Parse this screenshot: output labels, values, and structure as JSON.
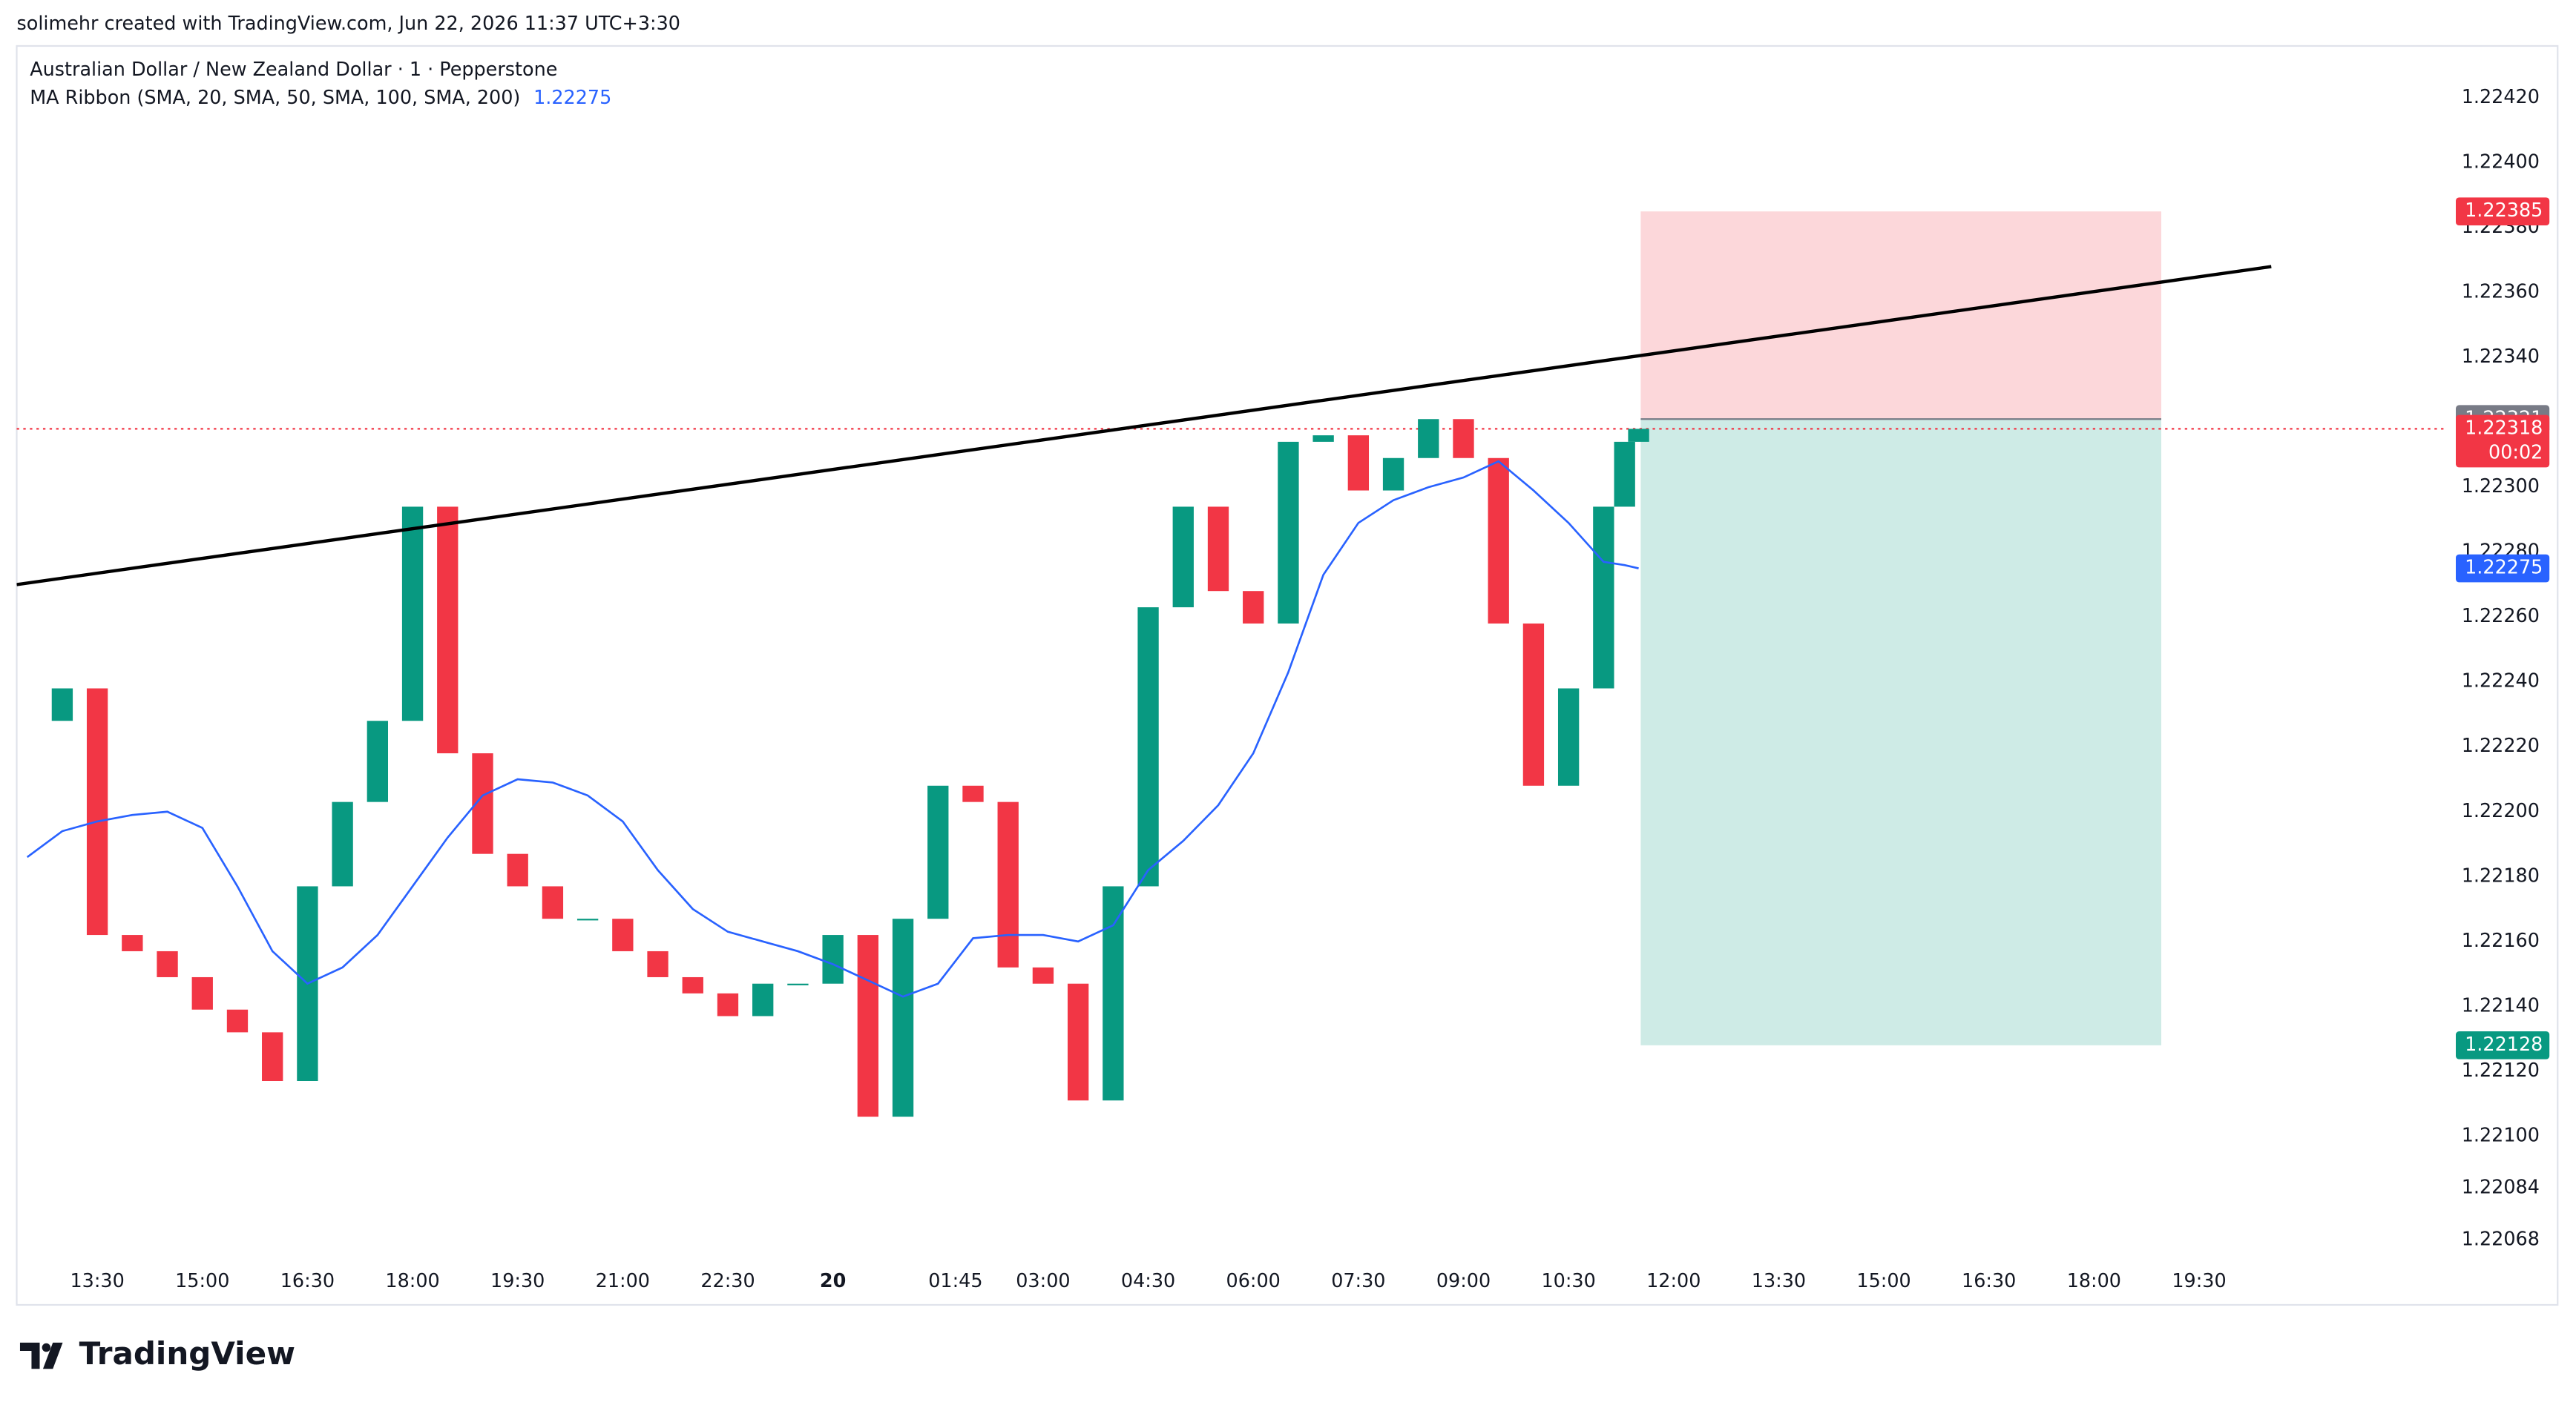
{
  "caption": "solimehr created with TradingView.com, Jun 22, 2026 11:37 UTC+3:30",
  "logo": "TradingView",
  "chart_data": {
    "type": "candlestick",
    "title": "Australian Dollar / New Zealand Dollar · 1 · Pepperstone",
    "up_color": "#089981",
    "down_color": "#f23645",
    "x": [
      12.5,
      13,
      13.5,
      14,
      14.5,
      15,
      15.5,
      16,
      16.5,
      17,
      17.5,
      18,
      18.5,
      19,
      19.5,
      20,
      20.5,
      21,
      21.5,
      22,
      22.5,
      23,
      23.5,
      24,
      24.5,
      25,
      25.5,
      26,
      26.5,
      27,
      27.5,
      28,
      28.5,
      29,
      29.5,
      30,
      30.5,
      31,
      31.5,
      32,
      32.5,
      33,
      33.5,
      34,
      34.5,
      35,
      35.3,
      35.5
    ],
    "close": [
      1.22228,
      1.22238,
      1.22162,
      1.22157,
      1.22149,
      1.22139,
      1.22132,
      1.22117,
      1.22177,
      1.22203,
      1.22228,
      1.22294,
      1.22218,
      1.22187,
      1.22177,
      1.22167,
      1.22167,
      1.22157,
      1.22149,
      1.22144,
      1.22137,
      1.22147,
      1.22147,
      1.22162,
      1.22106,
      1.22167,
      1.22208,
      1.22203,
      1.22152,
      1.22147,
      1.22111,
      1.22177,
      1.22263,
      1.22294,
      1.22268,
      1.22258,
      1.22314,
      1.22316,
      1.22299,
      1.22309,
      1.22321,
      1.22309,
      1.22258,
      1.22208,
      1.22238,
      1.22294,
      1.22314,
      1.22318
    ],
    "ma": {
      "name": "MA Ribbon (SMA, 20, SMA, 50, SMA, 100, SMA, 200)",
      "color": "#2962ff",
      "last": 1.22275,
      "values": [
        1.22186,
        1.22194,
        1.22197,
        1.22199,
        1.222,
        1.22195,
        1.22177,
        1.22157,
        1.22147,
        1.22152,
        1.22162,
        1.22177,
        1.22192,
        1.22205,
        1.2221,
        1.22209,
        1.22205,
        1.22197,
        1.22182,
        1.2217,
        1.22163,
        1.2216,
        1.22157,
        1.22153,
        1.22148,
        1.22143,
        1.22147,
        1.22161,
        1.22162,
        1.22162,
        1.2216,
        1.22165,
        1.22182,
        1.22191,
        1.22202,
        1.22218,
        1.22243,
        1.22273,
        1.22289,
        1.22296,
        1.223,
        1.22303,
        1.22308,
        1.22299,
        1.22289,
        1.22277,
        1.22276,
        1.22275
      ]
    },
    "trend_line": {
      "x": [
        12.35,
        44.53
      ],
      "y": [
        1.2227,
        1.22368
      ],
      "color": "#000000"
    },
    "position": {
      "x": [
        35.53,
        42.96
      ],
      "stop": 1.22385,
      "entry": 1.22321,
      "target": 1.22128,
      "stop_color": "#f23645",
      "entry_color": "#787b86",
      "target_color": "#089981"
    },
    "current_price": {
      "value": 1.22318,
      "countdown": "00:02",
      "color": "#f23645"
    },
    "xlim": [
      12.35,
      47.0
    ],
    "ylim": [
      1.22048,
      1.22436
    ],
    "xticks": [
      {
        "value": 13.5,
        "label": "13:30"
      },
      {
        "value": 15,
        "label": "15:00"
      },
      {
        "value": 16.5,
        "label": "16:30"
      },
      {
        "value": 18,
        "label": "18:00"
      },
      {
        "value": 19.5,
        "label": "19:30"
      },
      {
        "value": 21,
        "label": "21:00"
      },
      {
        "value": 22.5,
        "label": "22:30"
      },
      {
        "value": 24,
        "label": "20"
      },
      {
        "value": 25.75,
        "label": "01:45"
      },
      {
        "value": 27,
        "label": "03:00"
      },
      {
        "value": 28.5,
        "label": "04:30"
      },
      {
        "value": 30,
        "label": "06:00"
      },
      {
        "value": 31.5,
        "label": "07:30"
      },
      {
        "value": 33,
        "label": "09:00"
      },
      {
        "value": 34.5,
        "label": "10:30"
      },
      {
        "value": 36,
        "label": "12:00"
      },
      {
        "value": 37.5,
        "label": "13:30"
      },
      {
        "value": 39,
        "label": "15:00"
      },
      {
        "value": 40.5,
        "label": "16:30"
      },
      {
        "value": 42,
        "label": "18:00"
      },
      {
        "value": 43.5,
        "label": "19:30"
      }
    ],
    "yticks": [
      {
        "value": 1.2242,
        "label": "1.22420"
      },
      {
        "value": 1.224,
        "label": "1.22400"
      },
      {
        "value": 1.2238,
        "label": "1.22380"
      },
      {
        "value": 1.2236,
        "label": "1.22360"
      },
      {
        "value": 1.2234,
        "label": "1.22340"
      },
      {
        "value": 1.223,
        "label": "1.22300"
      },
      {
        "value": 1.2228,
        "label": "1.22280"
      },
      {
        "value": 1.2226,
        "label": "1.22260"
      },
      {
        "value": 1.2224,
        "label": "1.22240"
      },
      {
        "value": 1.2222,
        "label": "1.22220"
      },
      {
        "value": 1.222,
        "label": "1.22200"
      },
      {
        "value": 1.2218,
        "label": "1.22180"
      },
      {
        "value": 1.2216,
        "label": "1.22160"
      },
      {
        "value": 1.2214,
        "label": "1.22140"
      },
      {
        "value": 1.2212,
        "label": "1.22120"
      },
      {
        "value": 1.221,
        "label": "1.22100"
      },
      1.22084,
      1.22068
    ]
  }
}
